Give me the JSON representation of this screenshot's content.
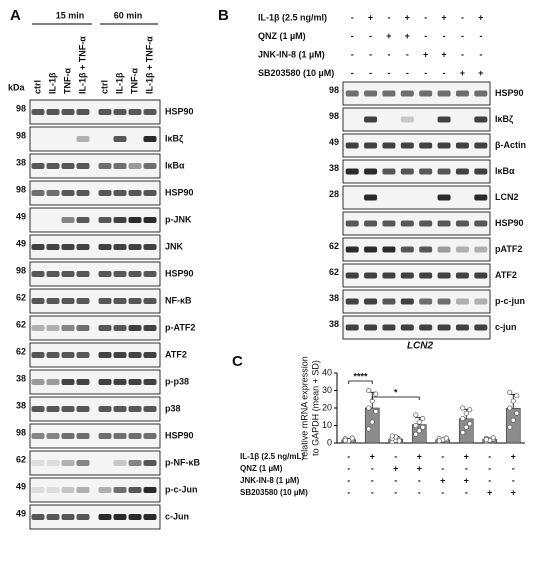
{
  "panel_a": {
    "letter": "A",
    "kda": "kDa",
    "timepoints": [
      "15 min",
      "60 min"
    ],
    "lane_labels": [
      "ctrl",
      "IL-1β",
      "TNF-α",
      "IL-1β + TNF-α",
      "ctrl",
      "IL-1β",
      "TNF-α",
      "IL-1β + TNF-α"
    ],
    "rows": [
      {
        "kda": "98",
        "label": "HSP90"
      },
      {
        "kda": "98",
        "label": "IκBζ"
      },
      {
        "kda": "38",
        "label": "IκBα"
      },
      {
        "kda": "98",
        "label": "HSP90"
      },
      {
        "kda": "49",
        "label": "p-JNK"
      },
      {
        "kda": "49",
        "label": "JNK"
      },
      {
        "kda": "98",
        "label": "HSP90"
      },
      {
        "kda": "62",
        "label": "NF-κB"
      },
      {
        "kda": "62",
        "label": "p-ATF2"
      },
      {
        "kda": "62",
        "label": "ATF2"
      },
      {
        "kda": "38",
        "label": "p-p38"
      },
      {
        "kda": "38",
        "label": "p38"
      },
      {
        "kda": "98",
        "label": "HSP90"
      },
      {
        "kda": "62",
        "label": "p-NF-κB"
      },
      {
        "kda": "49",
        "label": "p-c-Jun"
      },
      {
        "kda": "49",
        "label": "c-Jun"
      }
    ]
  },
  "panel_b": {
    "letter": "B",
    "treatments": [
      {
        "label": "IL-1β (2.5 ng/ml)",
        "signs": [
          "-",
          "+",
          "-",
          "+",
          "-",
          "+",
          "-",
          "+"
        ]
      },
      {
        "label": "QNZ (1 µM)",
        "signs": [
          "-",
          "-",
          "+",
          "+",
          "-",
          "-",
          "-",
          "-"
        ]
      },
      {
        "label": "JNK-IN-8 (1 µM)",
        "signs": [
          "-",
          "-",
          "-",
          "-",
          "+",
          "+",
          "-",
          "-"
        ]
      },
      {
        "label": "SB203580 (10 µM)",
        "signs": [
          "-",
          "-",
          "-",
          "-",
          "-",
          "-",
          "+",
          "+"
        ]
      }
    ],
    "rows": [
      {
        "kda": "98",
        "label": "HSP90"
      },
      {
        "kda": "98",
        "label": "IκBζ"
      },
      {
        "kda": "49",
        "label": "β-Actin"
      },
      {
        "kda": "38",
        "label": "IκBα"
      },
      {
        "kda": "28",
        "label": "LCN2"
      },
      {
        "label": "HSP90"
      },
      {
        "kda": "62",
        "label": "pATF2"
      },
      {
        "kda": "62",
        "label": "ATF2"
      },
      {
        "kda": "38",
        "label": "p-c-jun"
      },
      {
        "kda": "38",
        "label": "c-jun"
      }
    ]
  },
  "panel_c": {
    "letter": "C"
  },
  "chart_data": {
    "type": "bar",
    "title": "LCN2",
    "ylabel": [
      "relative mRNA expression",
      "to GAPDH (mean + SD)"
    ],
    "values": [
      1.8,
      20,
      2.2,
      10.5,
      1.8,
      13.8,
      2,
      19.8
    ],
    "errors": [
      0.7,
      9,
      1.5,
      4,
      0.8,
      5.5,
      0.7,
      8
    ],
    "points": [
      [
        1,
        1.5,
        2,
        2.5,
        1.2,
        2.8,
        1.6
      ],
      [
        8,
        12,
        18,
        20,
        24,
        28,
        30
      ],
      [
        0.8,
        1.5,
        2,
        2.5,
        3.5,
        1.2,
        4
      ],
      [
        5,
        7,
        9,
        10,
        12,
        14,
        16
      ],
      [
        1,
        1.5,
        2,
        2.5,
        1.8,
        2.8,
        1.2
      ],
      [
        6,
        9,
        11,
        14,
        17,
        19,
        20
      ],
      [
        1.2,
        1.8,
        2.2,
        2.6,
        1.5,
        3,
        2
      ],
      [
        9,
        13,
        17,
        20,
        24,
        27,
        29
      ]
    ],
    "color": "#8c8c8c",
    "ylim": [
      0,
      40
    ],
    "yticks": [
      0,
      10,
      20,
      30,
      40
    ],
    "significance": [
      "****",
      "*"
    ],
    "treatments": [
      {
        "label": "IL-1β (2.5 ng/mL)",
        "signs": [
          "-",
          "+",
          "-",
          "+",
          "-",
          "+",
          "-",
          "+"
        ]
      },
      {
        "label": "QNZ (1 µM)",
        "signs": [
          "-",
          "-",
          "+",
          "+",
          "-",
          "-",
          "-",
          "-"
        ]
      },
      {
        "label": "JNK-IN-8 (1 µM)",
        "signs": [
          "-",
          "-",
          "-",
          "-",
          "+",
          "+",
          "-",
          "-"
        ]
      },
      {
        "label": "SB203580 (10 µM)",
        "signs": [
          "-",
          "-",
          "-",
          "-",
          "-",
          "-",
          "+",
          "+"
        ]
      }
    ]
  }
}
